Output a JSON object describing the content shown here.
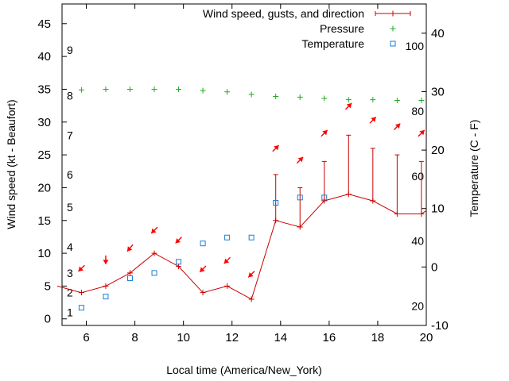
{
  "chart_data": {
    "type": "line",
    "title": "",
    "xlabel": "Local time (America/New_York)",
    "ylabel": "Wind speed (kt - Beaufort)",
    "y2label": "Temperature (C - F)",
    "xlim": [
      5,
      20
    ],
    "ylim": [
      -1,
      48
    ],
    "y2lim": [
      -10,
      45
    ],
    "x_ticks": [
      6,
      8,
      10,
      12,
      14,
      16,
      18,
      20
    ],
    "y_ticks": [
      0,
      5,
      10,
      15,
      20,
      25,
      30,
      35,
      40,
      45
    ],
    "y2_ticks": [
      -10,
      0,
      10,
      20,
      30,
      40
    ],
    "fahrenheit_labels": [
      {
        "label": "20",
        "celsius": -6.67
      },
      {
        "label": "40",
        "celsius": 4.44
      },
      {
        "label": "60",
        "celsius": 15.56
      },
      {
        "label": "80",
        "celsius": 26.67
      },
      {
        "label": "100",
        "celsius": 37.78
      }
    ],
    "beaufort_labels": [
      {
        "label": "1",
        "knots": 1
      },
      {
        "label": "2",
        "knots": 4
      },
      {
        "label": "3",
        "knots": 7
      },
      {
        "label": "4",
        "knots": 11
      },
      {
        "label": "5",
        "knots": 17
      },
      {
        "label": "6",
        "knots": 22
      },
      {
        "label": "7",
        "knots": 28
      },
      {
        "label": "8",
        "knots": 34
      },
      {
        "label": "9",
        "knots": 41
      }
    ],
    "legend_position": "top-right",
    "series": [
      {
        "name": "Wind speed, gusts, and direction",
        "color": "#cc0000",
        "x": [
          4.8,
          5.8,
          6.8,
          7.8,
          8.8,
          9.8,
          10.8,
          11.8,
          12.8,
          13.8,
          14.8,
          15.8,
          16.8,
          17.8,
          18.8,
          19.8,
          20
        ],
        "y": [
          5,
          4,
          5,
          7,
          10,
          8,
          4,
          5,
          3,
          15,
          14,
          18,
          19,
          18,
          16,
          16,
          16.5
        ],
        "gust": [
          null,
          null,
          null,
          null,
          null,
          null,
          null,
          null,
          null,
          22,
          20,
          24,
          28,
          26,
          25,
          24,
          null
        ]
      },
      {
        "name": "Pressure",
        "color": "#22aa22",
        "x": [
          5.8,
          6.8,
          7.8,
          8.8,
          9.8,
          10.8,
          11.8,
          12.8,
          13.8,
          14.8,
          15.8,
          16.8,
          17.8,
          18.8,
          19.8
        ],
        "y": [
          34.9,
          35.0,
          35.0,
          35.0,
          35.0,
          34.8,
          34.6,
          34.2,
          33.9,
          33.8,
          33.6,
          33.4,
          33.4,
          33.3,
          33.3
        ]
      },
      {
        "name": "Temperature",
        "color": "#1a7fd4",
        "x": [
          5.8,
          6.8,
          7.8,
          8.8,
          9.8,
          10.8,
          11.8,
          12.8,
          13.8,
          14.8,
          15.8
        ],
        "y": [
          1.7,
          3.4,
          6.2,
          7.0,
          8.7,
          11.5,
          12.4,
          12.4,
          17.7,
          18.5,
          18.5
        ]
      }
    ],
    "wind_arrows": {
      "color": "#ff0000",
      "x": [
        5.8,
        6.8,
        7.8,
        8.8,
        9.8,
        10.8,
        11.8,
        12.8,
        13.8,
        14.8,
        15.8,
        16.8,
        17.8,
        18.8,
        19.8
      ],
      "y": [
        7.7,
        9.0,
        10.8,
        13.5,
        12.0,
        7.6,
        8.9,
        6.8,
        26.0,
        24.2,
        28.3,
        32.4,
        30.3,
        29.3,
        28.3
      ],
      "pointing_deg": [
        225,
        180,
        220,
        225,
        225,
        225,
        225,
        225,
        45,
        45,
        45,
        45,
        45,
        45,
        45
      ]
    }
  }
}
